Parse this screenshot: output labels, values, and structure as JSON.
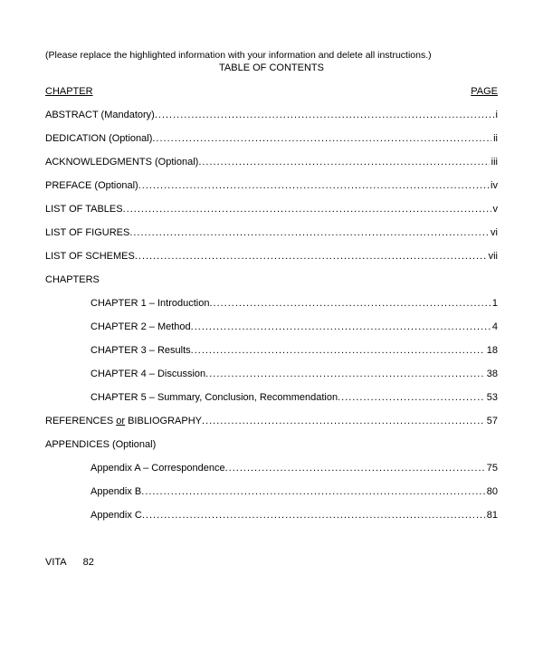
{
  "instruction": "(Please replace the highlighted information with your information and delete all instructions.)",
  "title": "TABLE OF CONTENTS",
  "header": {
    "left": "CHAPTER",
    "right": "PAGE"
  },
  "entries": {
    "abstract": {
      "label": "ABSTRACT (Mandatory)",
      "page": "i"
    },
    "dedication": {
      "label": "DEDICATION (Optional)",
      "page": "ii"
    },
    "acknowledgments": {
      "label": "ACKNOWLEDGMENTS (Optional)",
      "page": "iii"
    },
    "preface": {
      "label": "PREFACE (Optional)",
      "page": "iv"
    },
    "list_of_tables": {
      "label": "LIST OF TABLES",
      "page": "v"
    },
    "list_of_figures": {
      "label": "LIST OF FIGURES",
      "page": "vi"
    },
    "list_of_schemes": {
      "label": "LIST OF SCHEMES",
      "page": "vii"
    },
    "chapters_heading": "CHAPTERS",
    "chapter1": {
      "label": "CHAPTER 1 – Introduction",
      "page": "1"
    },
    "chapter2": {
      "label": "CHAPTER 2 – Method",
      "page": "4"
    },
    "chapter3": {
      "label": "CHAPTER 3 – Results",
      "page": "18"
    },
    "chapter4": {
      "label": "CHAPTER 4 – Discussion",
      "page": "38"
    },
    "chapter5": {
      "label": "CHAPTER 5 – Summary, Conclusion, Recommendation",
      "page": "53"
    },
    "references": {
      "prefix": "REFERENCES ",
      "or": "or",
      "suffix": " BIBLIOGRAPHY",
      "page": "57"
    },
    "appendices_heading": "APPENDICES (Optional)",
    "appendixA": {
      "label": "Appendix A – Correspondence",
      "page": "75"
    },
    "appendixB": {
      "label": "Appendix B",
      "page": "80"
    },
    "appendixC": {
      "label": "Appendix C",
      "page": "81"
    },
    "vita": {
      "label": "VITA",
      "page": "82"
    }
  },
  "style": {
    "background": "#ffffff",
    "text_color": "#000000",
    "font_size_pt": 11
  }
}
